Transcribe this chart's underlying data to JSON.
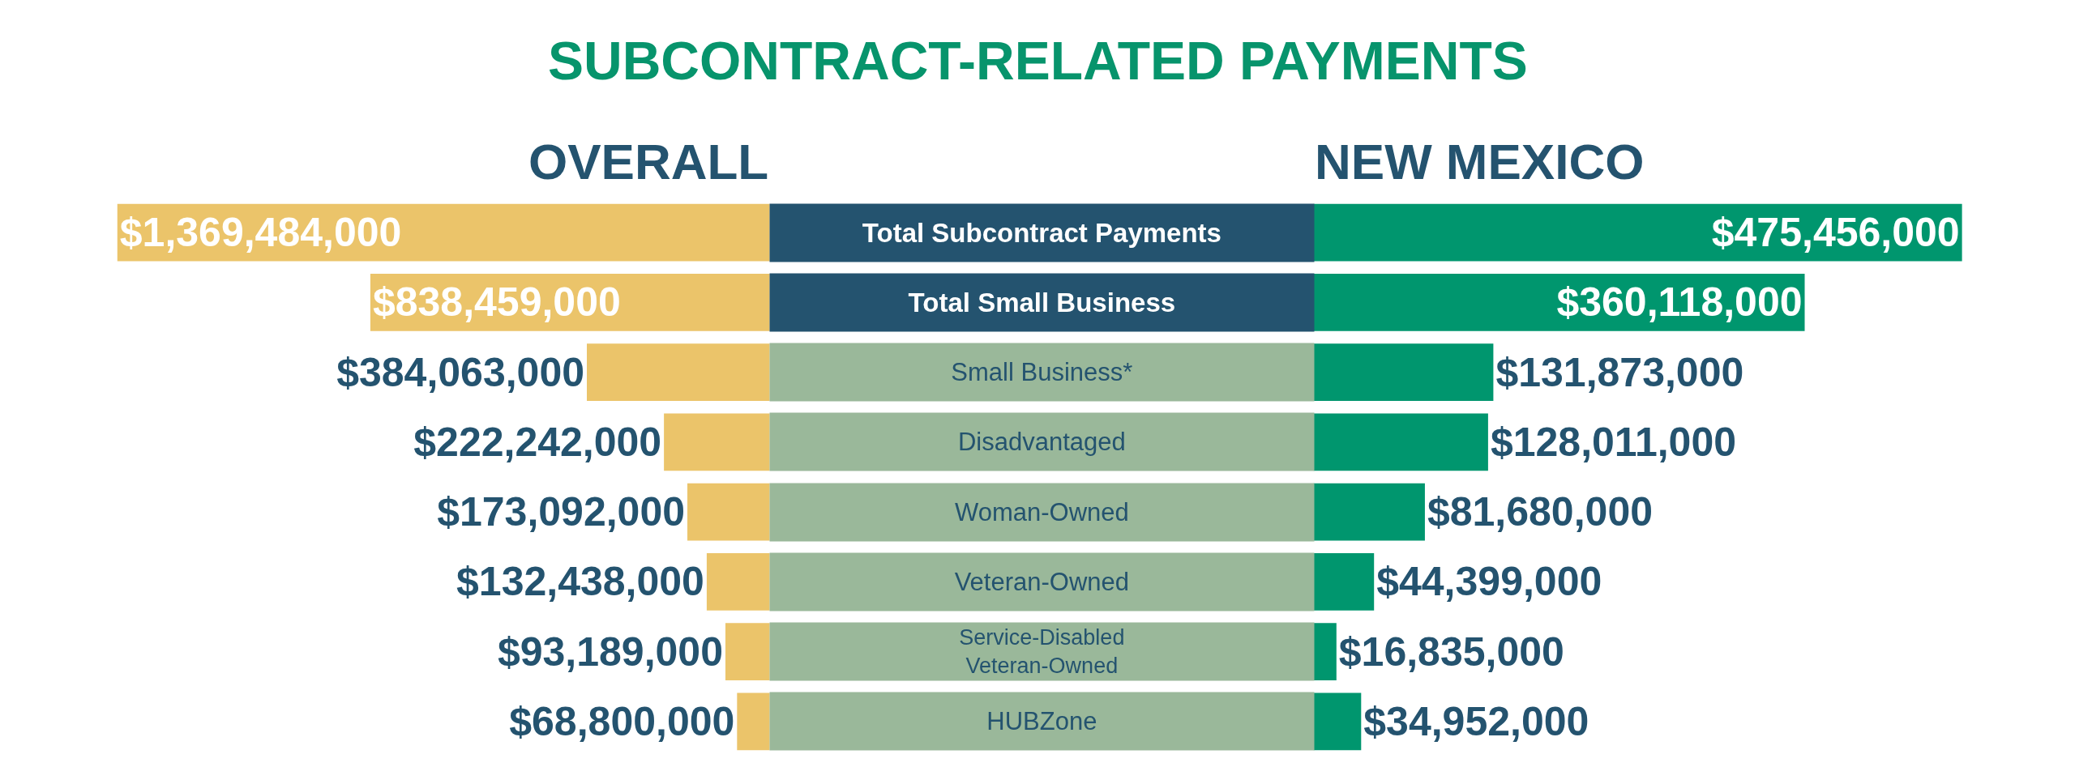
{
  "chart_data": [
    {
      "type": "bar",
      "title": "SUBCONTRACT-RELATED PAYMENTS",
      "subtitle": "OVERALL",
      "orientation": "horizontal",
      "categories": [
        "Total Subcontract Payments",
        "Total Small Business",
        "Small Business*",
        "Disadvantaged",
        "Woman-Owned",
        "Veteran-Owned",
        "Service-Disabled\nVeteran-Owned",
        "HUBZone"
      ],
      "values": [
        1369484000,
        838459000,
        384063000,
        222242000,
        173092000,
        132438000,
        93189000,
        68800000
      ],
      "value_labels": [
        "$1,369,484,000",
        "$838,459,000",
        "$384,063,000",
        "$222,242,000",
        "$173,092,000",
        "$132,438,000",
        "$93,189,000",
        "$68,800,000"
      ],
      "color": "#ebc46a",
      "tick_labels": "y"
    },
    {
      "type": "bar",
      "subtitle": "NEW MEXICO",
      "orientation": "horizontal",
      "categories": [
        "Total Subcontract Payments",
        "Total Small Business",
        "Small Business*",
        "Disadvantaged",
        "Woman-Owned",
        "Veteran-Owned",
        "Service-Disabled\nVeteran-Owned",
        "HUBZone"
      ],
      "values": [
        475456000,
        360118000,
        131873000,
        128011000,
        81680000,
        44399000,
        16835000,
        34952000
      ],
      "value_labels": [
        "$475,456,000",
        "$360,118,000",
        "$131,873,000",
        "$128,011,000",
        "$81,680,000",
        "$44,399,000",
        "$16,835,000",
        "$34,952,000"
      ],
      "color": "#00966e",
      "tick_labels": false
    }
  ]
}
